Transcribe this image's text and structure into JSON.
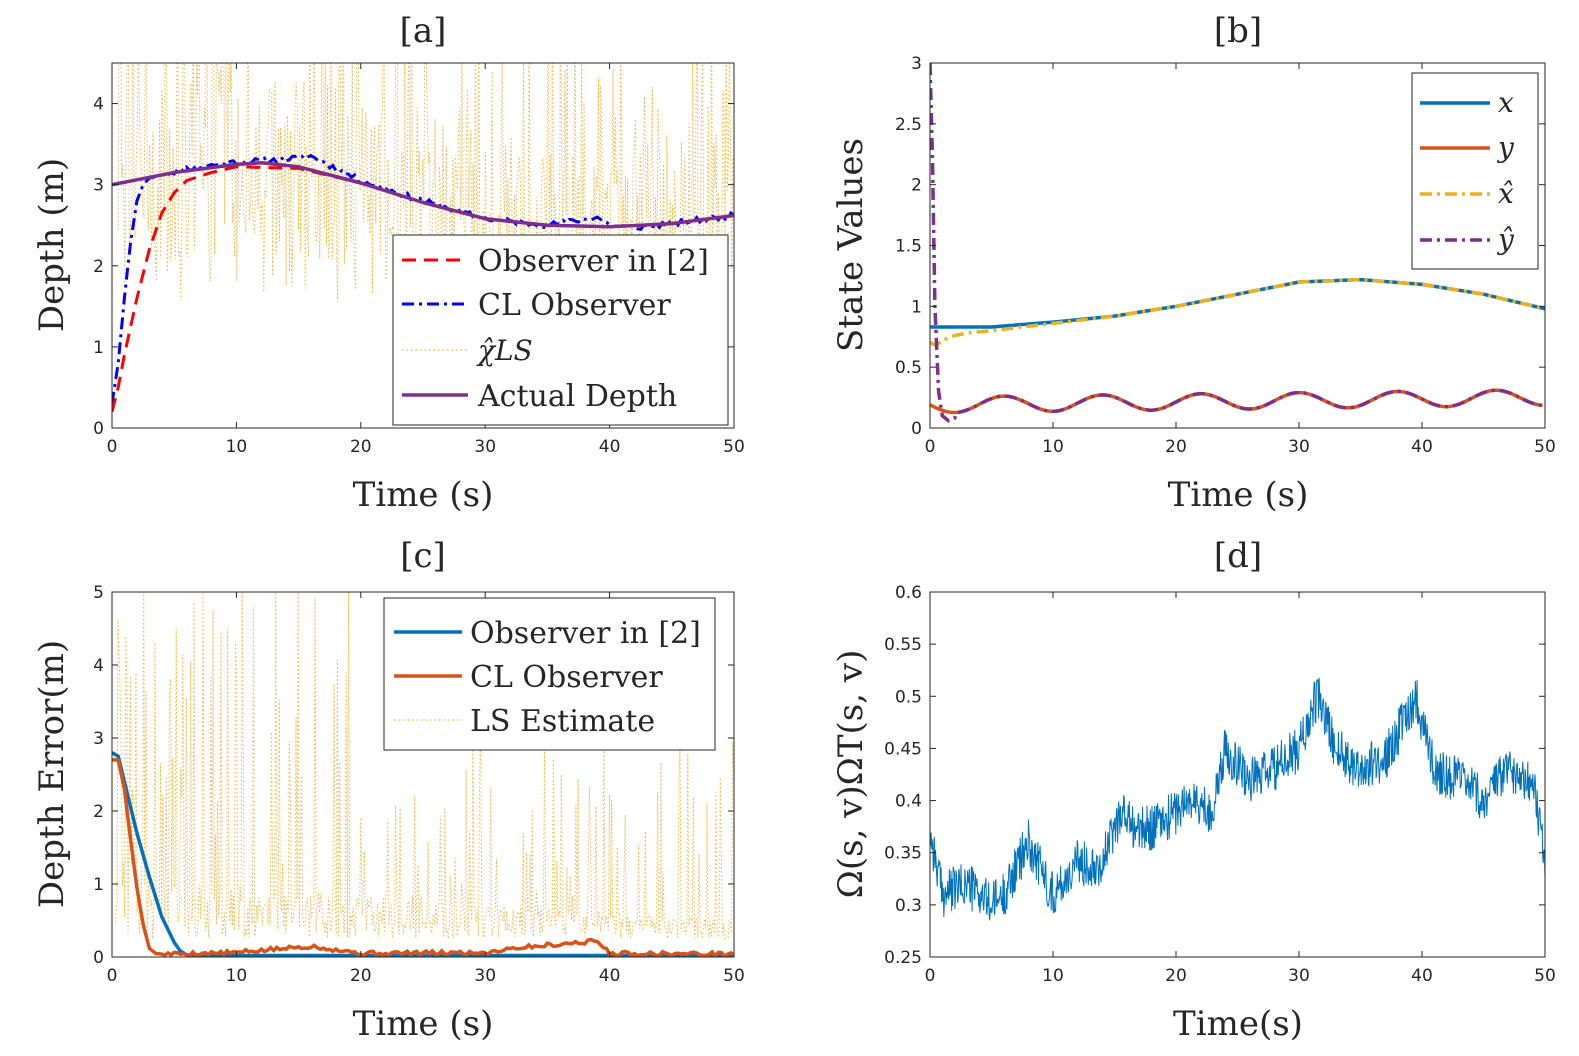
{
  "charts": {
    "a": {
      "title": "[a]",
      "xlabel": "Time (s)",
      "ylabel": "Depth (m)",
      "xlim": [
        0,
        50
      ],
      "ylim": [
        0,
        4.5
      ],
      "xticks": [
        "0",
        "10",
        "20",
        "30",
        "40",
        "50"
      ],
      "yticks": [
        "0",
        "1",
        "2",
        "3",
        "4"
      ],
      "legend": [
        "Observer in [2]",
        "CL Observer",
        "χ̂LS",
        "Actual Depth"
      ]
    },
    "b": {
      "title": "[b]",
      "xlabel": "Time (s)",
      "ylabel": "State Values",
      "xlim": [
        0,
        50
      ],
      "ylim": [
        0,
        3
      ],
      "xticks": [
        "0",
        "10",
        "20",
        "30",
        "40",
        "50"
      ],
      "yticks": [
        "0",
        "0.5",
        "1",
        "1.5",
        "2",
        "2.5",
        "3"
      ],
      "legend": [
        "x",
        "y",
        "x̂",
        "ŷ"
      ]
    },
    "c": {
      "title": "[c]",
      "xlabel": "Time (s)",
      "ylabel": "Depth Error(m)",
      "xlim": [
        0,
        50
      ],
      "ylim": [
        0,
        5
      ],
      "xticks": [
        "0",
        "10",
        "20",
        "30",
        "40",
        "50"
      ],
      "yticks": [
        "0",
        "1",
        "2",
        "3",
        "4",
        "5"
      ],
      "legend": [
        "Observer in [2]",
        "CL Observer",
        "LS Estimate"
      ]
    },
    "d": {
      "title": "[d]",
      "xlabel": "Time(s)",
      "ylabel": "Ω(s, v)ΩT(s, v)",
      "xlim": [
        0,
        50
      ],
      "ylim": [
        0.25,
        0.6
      ],
      "xticks": [
        "0",
        "10",
        "20",
        "30",
        "40",
        "50"
      ],
      "yticks": [
        "0.25",
        "0.3",
        "0.35",
        "0.4",
        "0.45",
        "0.5",
        "0.55",
        "0.6"
      ],
      "legend": []
    }
  },
  "colors": {
    "blue": "#0072BD",
    "orange": "#D95319",
    "yellow": "#EDB120",
    "purple": "#7E2F8E",
    "red": "#FF0000",
    "pureBlue": "#0000FF",
    "lsYellow": "#F0B43C"
  },
  "chart_data": [
    {
      "id": "a",
      "type": "line",
      "title": "[a]",
      "xlabel": "Time (s)",
      "ylabel": "Depth (m)",
      "xlim": [
        0,
        50
      ],
      "ylim": [
        0,
        4.5
      ],
      "series": [
        {
          "name": "Actual Depth",
          "style": "solid",
          "x": [
            0,
            5,
            10,
            12,
            15,
            20,
            25,
            30,
            35,
            40,
            45,
            50
          ],
          "y": [
            3.0,
            3.15,
            3.25,
            3.27,
            3.22,
            3.02,
            2.78,
            2.58,
            2.5,
            2.48,
            2.52,
            2.62
          ]
        },
        {
          "name": "Observer in [2]",
          "style": "dashed",
          "x": [
            0,
            0.5,
            1,
            2,
            3,
            4,
            5,
            6,
            8,
            10,
            15,
            20,
            25,
            30,
            35,
            40,
            45,
            50
          ],
          "y": [
            0.2,
            0.5,
            0.9,
            1.6,
            2.2,
            2.65,
            2.9,
            3.05,
            3.15,
            3.22,
            3.2,
            3.02,
            2.78,
            2.58,
            2.5,
            2.48,
            2.52,
            2.62
          ]
        },
        {
          "name": "CL Observer",
          "style": "dashdot",
          "x": [
            0,
            0.5,
            1,
            1.5,
            2,
            2.5,
            3,
            3.5,
            4,
            6,
            8,
            10,
            13,
            16,
            20,
            25,
            30,
            35,
            39,
            40,
            42,
            45,
            50
          ],
          "y": [
            0.3,
            0.8,
            1.6,
            2.3,
            2.8,
            3.0,
            3.08,
            3.1,
            3.12,
            3.2,
            3.24,
            3.28,
            3.3,
            3.35,
            3.05,
            2.8,
            2.58,
            2.5,
            2.6,
            2.5,
            2.47,
            2.52,
            2.62
          ]
        },
        {
          "name": "χ̂LS",
          "style": "dotted",
          "x": [
            0,
            50
          ],
          "y_range": [
            1.7,
            4.5
          ],
          "note": "noisy least-squares estimate spanning ~1.7 to >4.5 m"
        }
      ]
    },
    {
      "id": "b",
      "type": "line",
      "title": "[b]",
      "xlabel": "Time (s)",
      "ylabel": "State Values",
      "xlim": [
        0,
        50
      ],
      "ylim": [
        0,
        3
      ],
      "series": [
        {
          "name": "x",
          "style": "solid",
          "x": [
            0,
            0.3,
            5,
            10,
            15,
            20,
            25,
            30,
            35,
            40,
            45,
            50
          ],
          "y": [
            0.83,
            0.83,
            0.83,
            0.87,
            0.92,
            1.0,
            1.1,
            1.2,
            1.22,
            1.18,
            1.1,
            0.98
          ]
        },
        {
          "name": "y",
          "style": "solid",
          "x": [
            0,
            50
          ],
          "y_formula": "0.19 + 0.06*sin(2π(t-4)/8) + slow drift",
          "y_range": [
            0.08,
            0.31
          ]
        },
        {
          "name": "x̂",
          "style": "dashdot",
          "x": [
            0,
            0.5,
            1,
            2,
            3,
            5,
            10,
            15,
            20,
            25,
            30,
            35,
            40,
            45,
            50
          ],
          "y": [
            0.7,
            0.68,
            0.72,
            0.76,
            0.78,
            0.8,
            0.86,
            0.92,
            1.0,
            1.1,
            1.2,
            1.22,
            1.18,
            1.1,
            0.98
          ]
        },
        {
          "name": "ŷ",
          "style": "dashdot",
          "x": [
            0,
            0.2,
            0.4,
            0.7,
            1,
            1.5,
            2
          ],
          "y": [
            3.0,
            2.2,
            1.0,
            0.3,
            0.1,
            0.06,
            0.08
          ]
        }
      ]
    },
    {
      "id": "c",
      "type": "line",
      "title": "[c]",
      "xlabel": "Time (s)",
      "ylabel": "Depth Error(m)",
      "xlim": [
        0,
        50
      ],
      "ylim": [
        0,
        5
      ],
      "series": [
        {
          "name": "Observer in [2]",
          "style": "solid",
          "x": [
            0,
            0.5,
            1,
            2,
            3,
            4,
            5,
            5.5,
            6,
            10,
            20,
            30,
            40,
            50
          ],
          "y": [
            2.8,
            2.75,
            2.4,
            1.7,
            1.1,
            0.55,
            0.2,
            0.08,
            0.03,
            0.02,
            0.02,
            0.02,
            0.02,
            0.02
          ]
        },
        {
          "name": "CL Observer",
          "style": "solid",
          "x": [
            0,
            0.5,
            1,
            1.5,
            2,
            2.5,
            3,
            3.5,
            4,
            10,
            16,
            20,
            30,
            32,
            39,
            40,
            50
          ],
          "y": [
            2.7,
            2.7,
            2.3,
            1.6,
            0.95,
            0.45,
            0.12,
            0.05,
            0.04,
            0.06,
            0.15,
            0.05,
            0.06,
            0.12,
            0.22,
            0.05,
            0.04
          ]
        },
        {
          "name": "LS Estimate",
          "style": "dotted",
          "x": [
            0,
            50
          ],
          "y_range": [
            0,
            5
          ],
          "note": "noisy error of the least-squares estimate, spikes up to 5 m"
        }
      ]
    },
    {
      "id": "d",
      "type": "line",
      "title": "[d]",
      "xlabel": "Time(s)",
      "ylabel": "Ω(s, v)ΩT(s, v)",
      "xlim": [
        0,
        50
      ],
      "ylim": [
        0.25,
        0.6
      ],
      "series": [
        {
          "name": "Ω(s,v)ΩT(s,v)",
          "style": "solid",
          "x": [
            0,
            1,
            3,
            5,
            6,
            8,
            10,
            12,
            14,
            15.5,
            17,
            19,
            21,
            23,
            24,
            26,
            28,
            30,
            31.5,
            33,
            35,
            37,
            39.5,
            41,
            43,
            45,
            47,
            49,
            50
          ],
          "y": [
            0.37,
            0.31,
            0.32,
            0.3,
            0.31,
            0.36,
            0.31,
            0.34,
            0.34,
            0.39,
            0.37,
            0.38,
            0.4,
            0.39,
            0.45,
            0.42,
            0.43,
            0.45,
            0.5,
            0.45,
            0.43,
            0.44,
            0.5,
            0.43,
            0.42,
            0.4,
            0.43,
            0.42,
            0.34
          ]
        }
      ]
    }
  ]
}
